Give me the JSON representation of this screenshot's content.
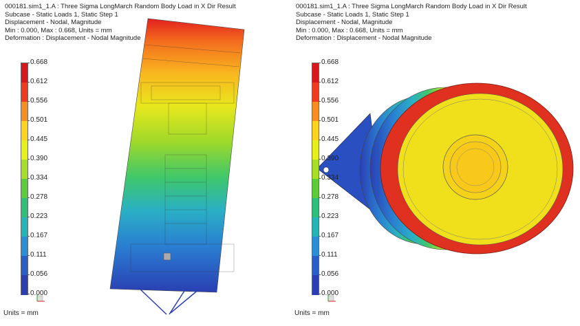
{
  "panels": [
    {
      "id": "left",
      "header": {
        "line1": "000181.sim1_1.A : Three Sigma LongMarch Random Body Load in X Dir Result",
        "line2": "Subcase - Static Loads 1, Static Step 1",
        "line3": "Displacement - Nodal, Magnitude",
        "line4": "Min : 0.000, Max : 0.668, Units = mm",
        "line5": "Deformation : Displacement - Nodal Magnitude"
      },
      "legend_labels": [
        "0.668",
        "0.612",
        "0.556",
        "0.501",
        "0.445",
        "0.390",
        "0.334",
        "0.278",
        "0.223",
        "0.167",
        "0.111",
        "0.056",
        "0.000"
      ],
      "units_label": "Units = mm",
      "model_icon": "side-view-fem-model"
    },
    {
      "id": "right",
      "header": {
        "line1": "000181.sim1_1.A : Three Sigma LongMarch Random Body Load in X Dir Result",
        "line2": "Subcase - Static Loads 1, Static Step 1",
        "line3": "Displacement - Nodal, Magnitude",
        "line4": "Min : 0.000, Max : 0.668, Units = mm",
        "line5": "Deformation : Displacement - Nodal Magnitude"
      },
      "legend_labels": [
        "0.668",
        "0.612",
        "0.556",
        "0.501",
        "0.445",
        "0.390",
        "0.334",
        "0.278",
        "0.223",
        "0.167",
        "0.111",
        "0.056",
        "0.000"
      ],
      "units_label": "Units = mm",
      "model_icon": "top-view-fem-model"
    }
  ],
  "colors": {
    "legend": [
      "#d7191c",
      "#f03b1f",
      "#f88d21",
      "#fdd31d",
      "#e6f01a",
      "#a6df25",
      "#5ccc3a",
      "#2fbf7a",
      "#25b5b5",
      "#2a8fd6",
      "#2a5ec9",
      "#2a3fb3"
    ]
  }
}
